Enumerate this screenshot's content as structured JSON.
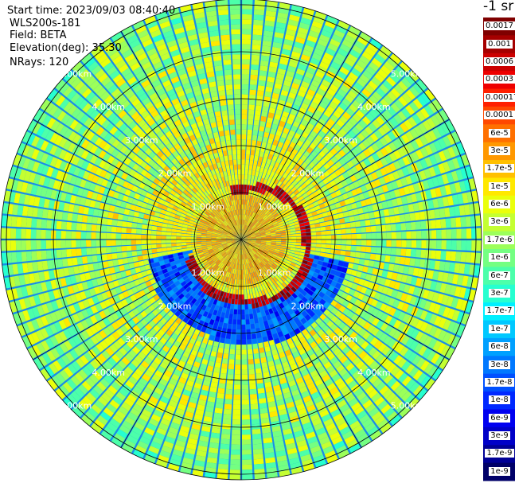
{
  "header": {
    "start_time": "Start time: 2023/09/03 08:40:40",
    "site": "WLS200s-181",
    "field": "Field: BETA",
    "elevation": "Elevation(deg): 35.30",
    "nrays": "NRays: 120"
  },
  "colorbar": {
    "unit_title": "-1 sr",
    "labels": [
      "0.0017",
      "0.001",
      "0.0006",
      "0.0003",
      "0.00017",
      "0.0001",
      "6e-5",
      "3e-5",
      "1.7e-5",
      "1e-5",
      "6e-6",
      "3e-6",
      "1.7e-6",
      "1e-6",
      "6e-7",
      "3e-7",
      "1.7e-7",
      "1e-7",
      "6e-8",
      "3e-8",
      "1.7e-8",
      "1e-8",
      "6e-9",
      "3e-9",
      "1.7e-9",
      "1e-9"
    ],
    "colors": [
      "#7f0000",
      "#a50000",
      "#cc0000",
      "#ee0000",
      "#ff2000",
      "#ff4800",
      "#ff7000",
      "#ff9800",
      "#ffc000",
      "#ffe800",
      "#eaff0c",
      "#c4ff32",
      "#9cff5a",
      "#74ff82",
      "#4cffaa",
      "#26ffd0",
      "#00f0ff",
      "#00c8ff",
      "#00a0ff",
      "#0078ff",
      "#0050ff",
      "#0028ff",
      "#0000f0",
      "#0000c8",
      "#000096",
      "#000068"
    ]
  },
  "ppi": {
    "range_labels": [
      "1.00km",
      "2.00km",
      "3.00km",
      "4.00km",
      "5.00km"
    ]
  }
}
